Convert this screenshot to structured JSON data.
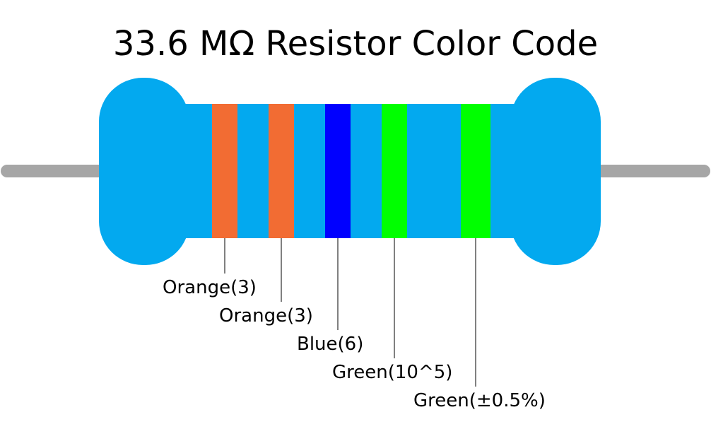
{
  "title": "33.6 MΩ Resistor Color Code",
  "bands": [
    {
      "label": "Orange(3)",
      "color": "#f26c33"
    },
    {
      "label": "Orange(3)",
      "color": "#f26c33"
    },
    {
      "label": "Blue(6)",
      "color": "#0000ff"
    },
    {
      "label": "Green(10^5)",
      "color": "#00ff00"
    },
    {
      "label": "Green(±0.5%)",
      "color": "#00ff00"
    }
  ]
}
